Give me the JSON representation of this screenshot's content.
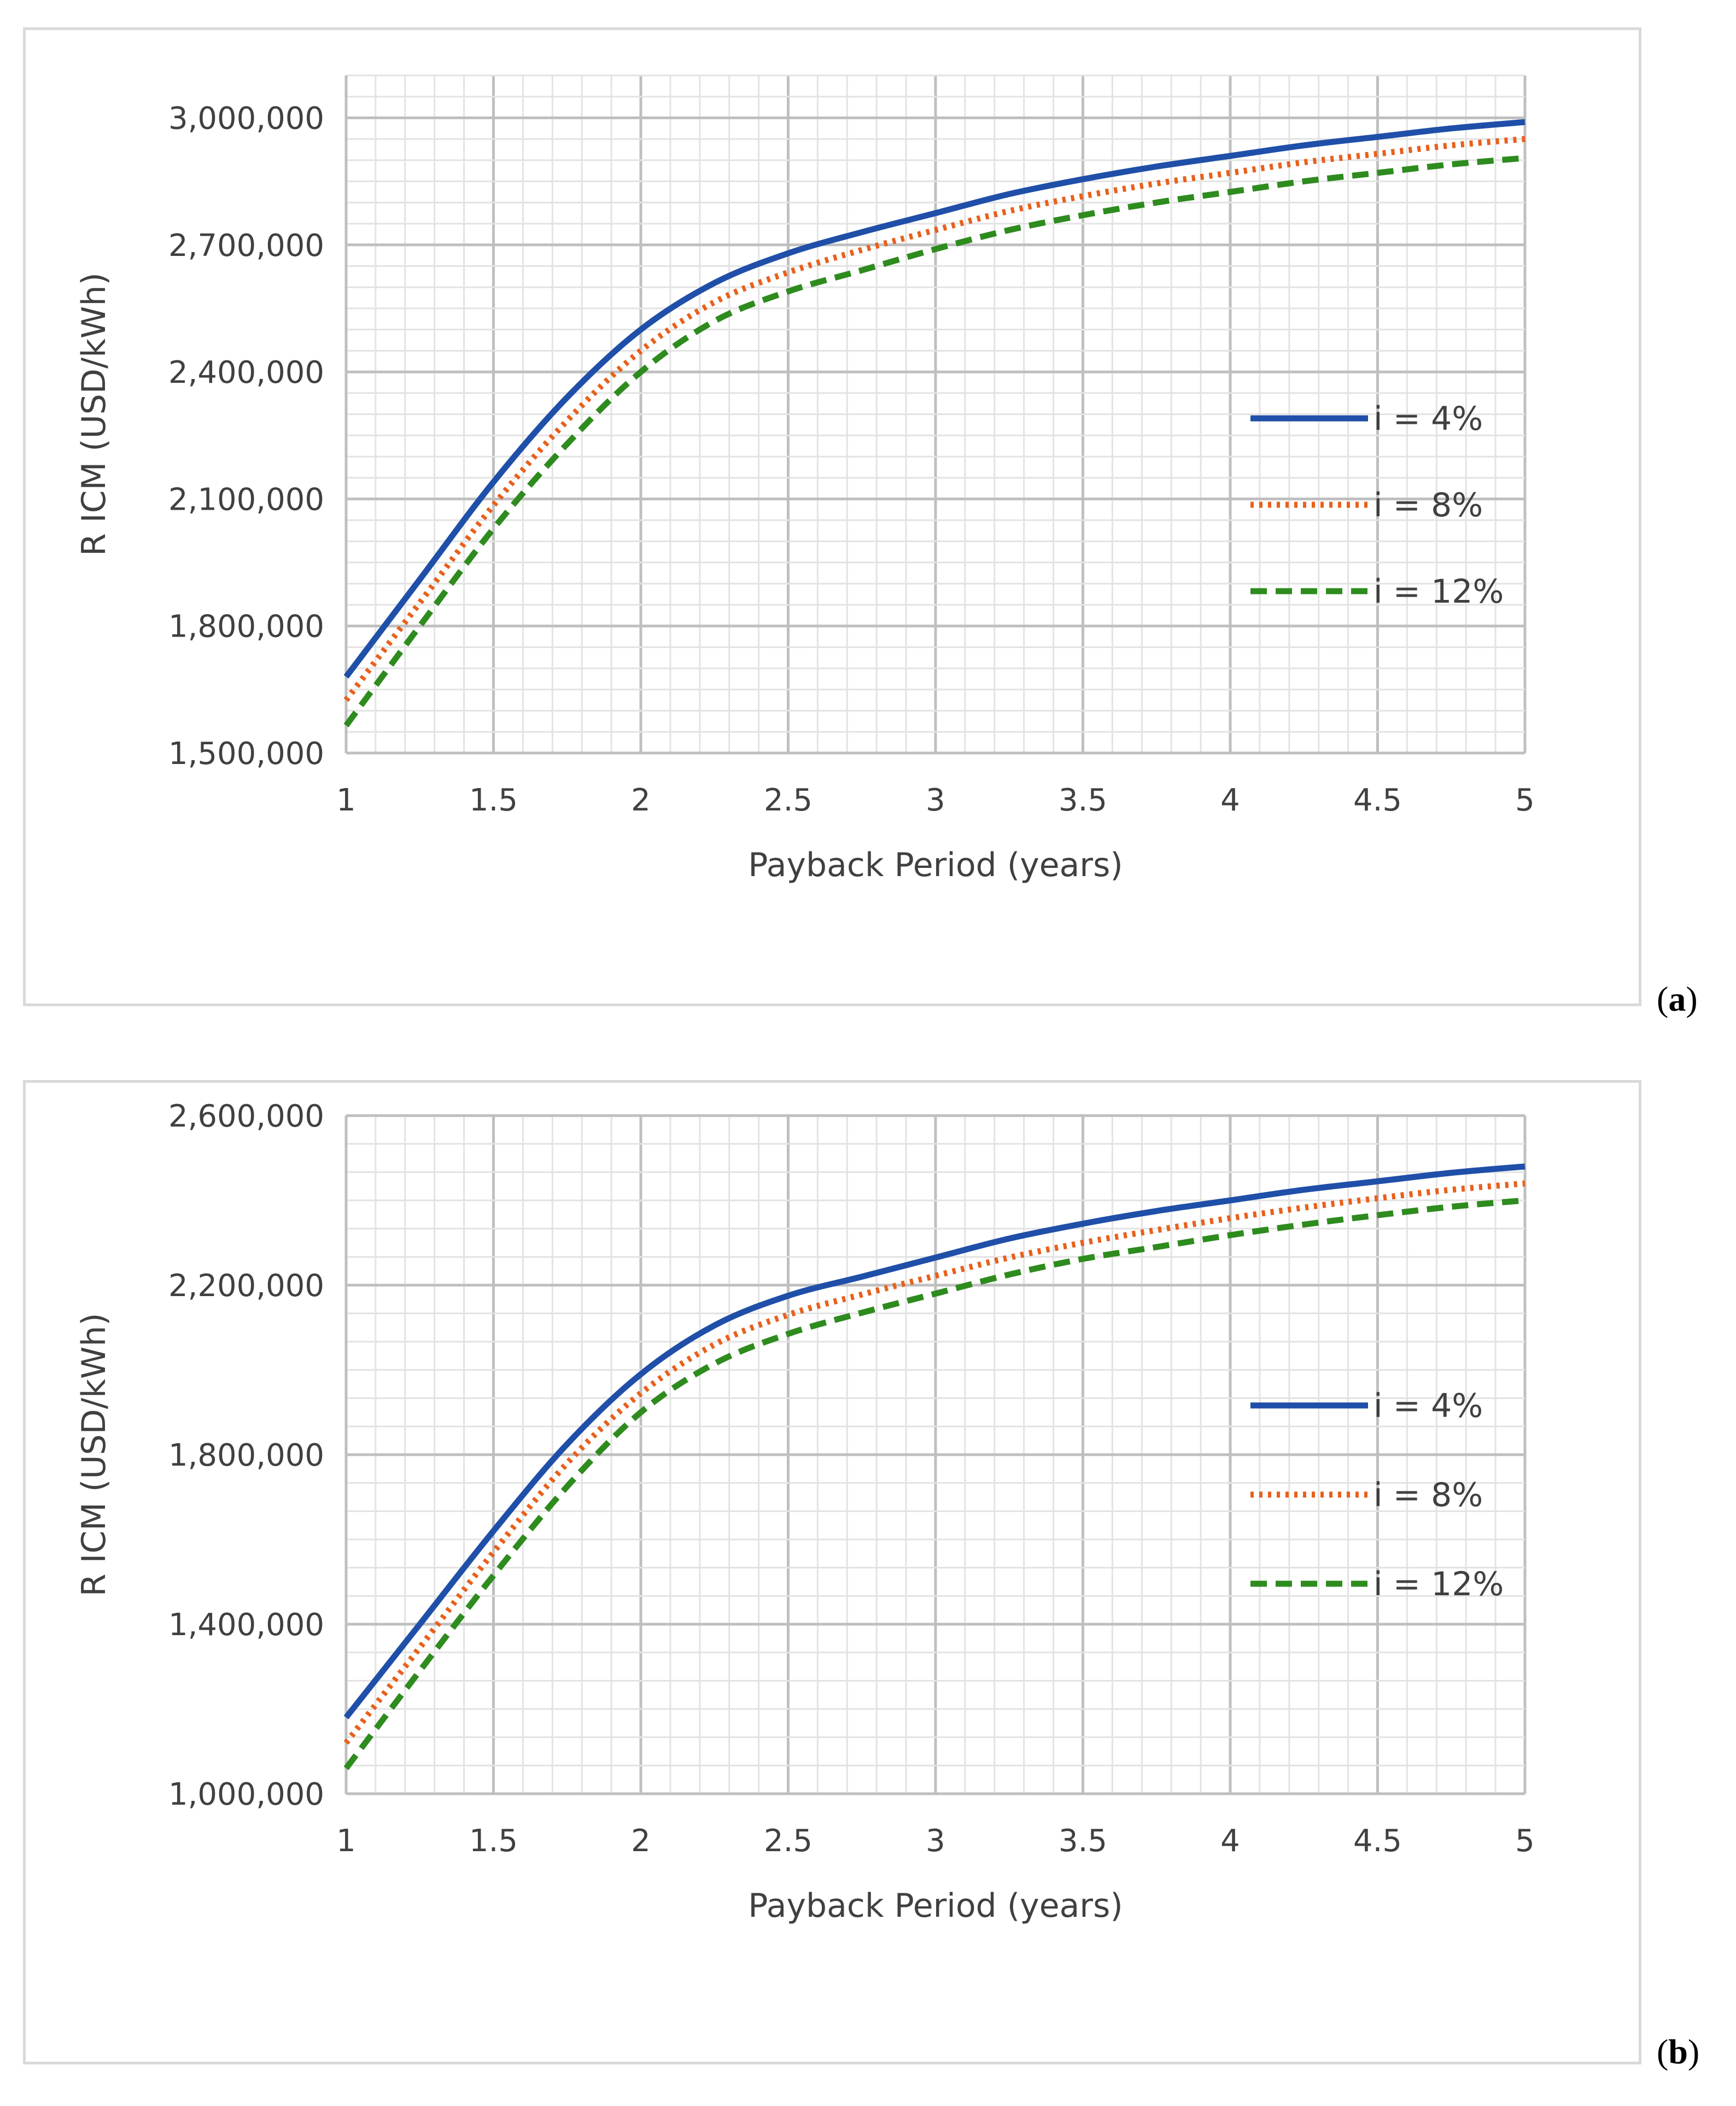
{
  "chart_data": [
    {
      "type": "line",
      "panel_label": "a",
      "title": "",
      "xlabel": "Payback Period (years)",
      "ylabel": "R ICM (USD/kWh)",
      "xlim": [
        1,
        5
      ],
      "ylim": [
        1500000,
        3100000
      ],
      "xticks": [
        1,
        1.5,
        2,
        2.5,
        3,
        3.5,
        4,
        4.5,
        5
      ],
      "xtick_labels": [
        "1",
        "1.5",
        "2",
        "2.5",
        "3",
        "3.5",
        "4",
        "4.5",
        "5"
      ],
      "yticks": [
        1500000,
        1800000,
        2100000,
        2400000,
        2700000,
        3000000
      ],
      "ytick_labels": [
        "1,500,000",
        "1,800,000",
        "2,100,000",
        "2,400,000",
        "2,700,000",
        "3,000,000"
      ],
      "grid": true,
      "legend_position": "right",
      "x": [
        1,
        1.25,
        1.5,
        1.75,
        2,
        2.25,
        2.5,
        2.75,
        3,
        3.25,
        3.5,
        3.75,
        4,
        4.25,
        4.5,
        4.75,
        5
      ],
      "series": [
        {
          "name": "i = 4%",
          "style": "solid",
          "color": "#1f4fa8",
          "values": [
            1680000,
            1910000,
            2140000,
            2340000,
            2500000,
            2610000,
            2680000,
            2730000,
            2775000,
            2820000,
            2855000,
            2885000,
            2910000,
            2935000,
            2955000,
            2975000,
            2990000
          ]
        },
        {
          "name": "i = 8%",
          "style": "dotted",
          "color": "#e8601c",
          "values": [
            1625000,
            1855000,
            2085000,
            2285000,
            2450000,
            2565000,
            2635000,
            2688000,
            2735000,
            2780000,
            2815000,
            2845000,
            2870000,
            2895000,
            2915000,
            2935000,
            2950000
          ]
        },
        {
          "name": "i = 12%",
          "style": "dashed",
          "color": "#2e8b1e",
          "values": [
            1565000,
            1800000,
            2030000,
            2230000,
            2400000,
            2520000,
            2590000,
            2640000,
            2690000,
            2735000,
            2770000,
            2800000,
            2825000,
            2850000,
            2870000,
            2890000,
            2905000
          ]
        }
      ]
    },
    {
      "type": "line",
      "panel_label": "b",
      "title": "",
      "xlabel": "Payback Period (years)",
      "ylabel": "R ICM (USD/kWh)",
      "xlim": [
        1,
        5
      ],
      "ylim": [
        1000000,
        2600000
      ],
      "xticks": [
        1,
        1.5,
        2,
        2.5,
        3,
        3.5,
        4,
        4.5,
        5
      ],
      "xtick_labels": [
        "1",
        "1.5",
        "2",
        "2.5",
        "3",
        "3.5",
        "4",
        "4.5",
        "5"
      ],
      "yticks": [
        1000000,
        1400000,
        1800000,
        2200000,
        2600000
      ],
      "ytick_labels": [
        "1,000,000",
        "1,400,000",
        "1,800,000",
        "2,200,000",
        "2,600,000"
      ],
      "grid": true,
      "legend_position": "right",
      "x": [
        1,
        1.25,
        1.5,
        1.75,
        2,
        2.25,
        2.5,
        2.75,
        3,
        3.25,
        3.5,
        3.75,
        4,
        4.25,
        4.5,
        4.75,
        5
      ],
      "series": [
        {
          "name": "i = 4%",
          "style": "solid",
          "color": "#1f4fa8",
          "values": [
            1180000,
            1400000,
            1620000,
            1825000,
            1990000,
            2105000,
            2175000,
            2220000,
            2265000,
            2310000,
            2345000,
            2375000,
            2400000,
            2425000,
            2445000,
            2465000,
            2480000
          ]
        },
        {
          "name": "i = 8%",
          "style": "dotted",
          "color": "#e8601c",
          "values": [
            1120000,
            1345000,
            1570000,
            1780000,
            1945000,
            2060000,
            2130000,
            2178000,
            2222000,
            2265000,
            2300000,
            2330000,
            2358000,
            2383000,
            2405000,
            2425000,
            2440000
          ]
        },
        {
          "name": "i = 12%",
          "style": "dashed",
          "color": "#2e8b1e",
          "values": [
            1060000,
            1290000,
            1515000,
            1725000,
            1900000,
            2015000,
            2085000,
            2135000,
            2180000,
            2225000,
            2262000,
            2290000,
            2318000,
            2343000,
            2365000,
            2385000,
            2400000
          ]
        }
      ]
    }
  ]
}
